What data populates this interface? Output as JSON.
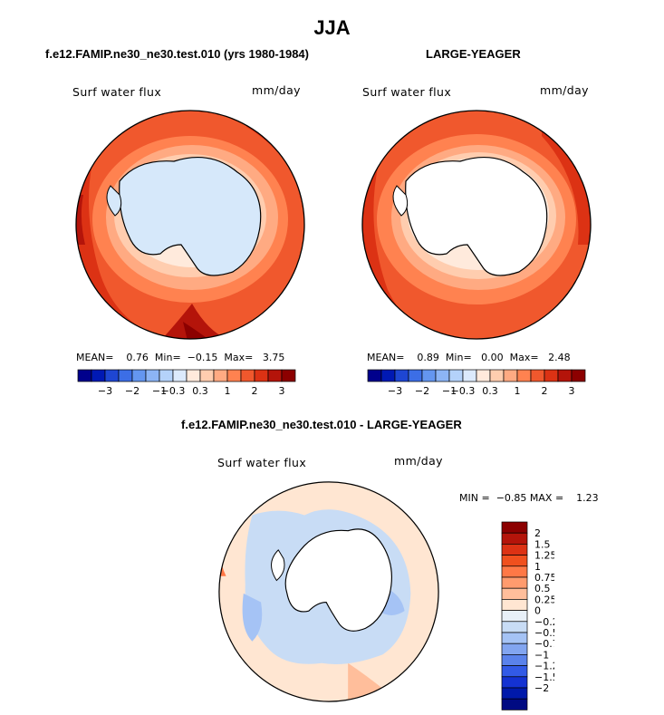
{
  "figure": {
    "title": "JJA",
    "left_title": "f.e12.FAMIP.ne30_ne30.test.010 (yrs 1980-1984)",
    "right_title": "LARGE-YEAGER",
    "diff_title": "f.e12.FAMIP.ne30_ne30.test.010 - LARGE-YEAGER"
  },
  "panels": {
    "left": {
      "label": "Surf water flux",
      "units": "mm/day",
      "mean_label": "MEAN=",
      "mean": "0.76",
      "min_label": "Min=",
      "min": "−0.15",
      "max_label": "Max=",
      "max": "3.75",
      "land_fill": "#d6e8fa"
    },
    "right": {
      "label": "Surf water flux",
      "units": "mm/day",
      "mean_label": "MEAN=",
      "mean": "0.89",
      "min_label": "Min=",
      "min": "0.00",
      "max_label": "Max=",
      "max": "2.48",
      "land_fill": "#ffffff"
    },
    "diff": {
      "label": "Surf water flux",
      "units": "mm/day",
      "min_label": "MIN =",
      "min": "−0.85",
      "max_label": "MAX =",
      "max": "1.23",
      "land_fill": "#ffffff"
    }
  },
  "colorbar_h": {
    "colors": [
      "#00008c",
      "#0019b4",
      "#1e46d2",
      "#3c6ee6",
      "#6496f0",
      "#8cb4f5",
      "#b4d2fa",
      "#dceafc",
      "#ffeadc",
      "#ffcdaf",
      "#ffaa82",
      "#ff8250",
      "#f0582d",
      "#dc3214",
      "#b4140a",
      "#8c0000"
    ],
    "labels": [
      "−3",
      "−2",
      "−1",
      "−0.3",
      "0.3",
      "1",
      "2",
      "3"
    ]
  },
  "colorbar_v": {
    "colors": [
      "#8c0000",
      "#b4140a",
      "#dc3214",
      "#f0501e",
      "#ff7846",
      "#ff9b6e",
      "#ffbe9b",
      "#ffe6d2",
      "#e8f0f8",
      "#c8dcf5",
      "#a5c3f5",
      "#82a5f0",
      "#5a82eb",
      "#325ae6",
      "#1432d2",
      "#0019aa",
      "#000a82"
    ],
    "labels": [
      "2",
      "1.5",
      "1.25",
      "1",
      "0.75",
      "0.5",
      "0.25",
      "0",
      "−0.25",
      "−0.5",
      "−0.75",
      "−1",
      "−1.25",
      "−1.5",
      "−2"
    ]
  },
  "chart_data": [
    {
      "type": "heatmap",
      "title": "f.e12.FAMIP.ne30_ne30.test.010 (yrs 1980-1984)",
      "variable": "Surf water flux",
      "units": "mm/day",
      "projection": "south polar stereographic",
      "season": "JJA",
      "mean": 0.76,
      "min": -0.15,
      "max": 3.75,
      "contour_levels": [
        -3,
        -2,
        -1,
        -0.3,
        0.3,
        1,
        2,
        3
      ]
    },
    {
      "type": "heatmap",
      "title": "LARGE-YEAGER",
      "variable": "Surf water flux",
      "units": "mm/day",
      "projection": "south polar stereographic",
      "season": "JJA",
      "mean": 0.89,
      "min": 0.0,
      "max": 2.48,
      "contour_levels": [
        -3,
        -2,
        -1,
        -0.3,
        0.3,
        1,
        2,
        3
      ]
    },
    {
      "type": "heatmap",
      "title": "f.e12.FAMIP.ne30_ne30.test.010 - LARGE-YEAGER",
      "variable": "Surf water flux",
      "units": "mm/day",
      "projection": "south polar stereographic",
      "season": "JJA",
      "min": -0.85,
      "max": 1.23,
      "contour_levels": [
        -2,
        -1.5,
        -1.25,
        -1,
        -0.75,
        -0.5,
        -0.25,
        0,
        0.25,
        0.5,
        0.75,
        1,
        1.25,
        1.5,
        2
      ]
    }
  ]
}
